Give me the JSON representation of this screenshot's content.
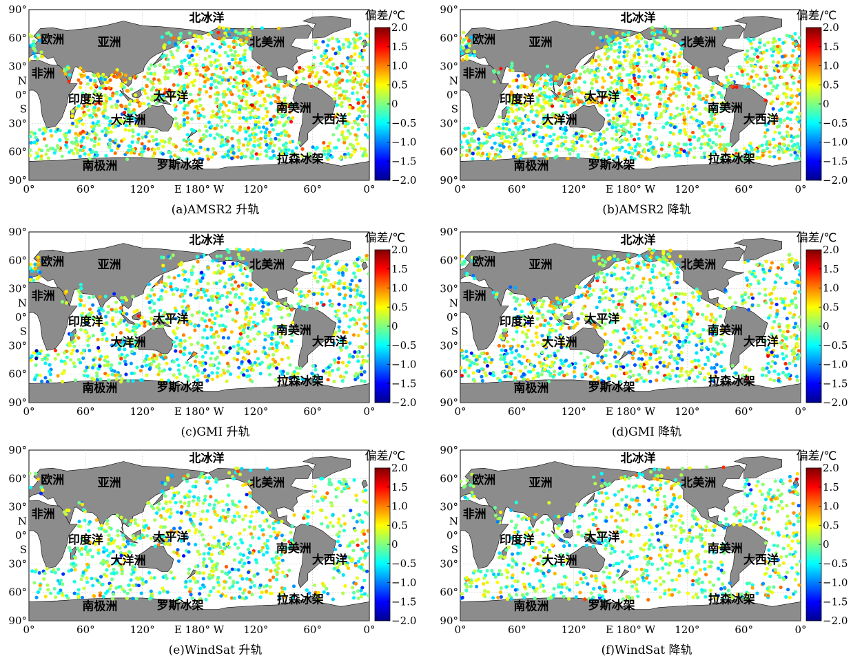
{
  "panels": [
    {
      "caption": "(a)AMSR2 升轨",
      "coverage": "global_dense",
      "seed": 11
    },
    {
      "caption": "(b)AMSR2 降轨",
      "coverage": "global_dense",
      "seed": 23
    },
    {
      "caption": "(c)GMI 升轨",
      "coverage": "global",
      "seed": 37
    },
    {
      "caption": "(d)GMI 降轨",
      "coverage": "global",
      "seed": 41
    },
    {
      "caption": "(e)WindSat 升轨",
      "coverage": "global_sparse",
      "seed": 53
    },
    {
      "caption": "(f)WindSat 降轨",
      "coverage": "global_sparse",
      "seed": 67
    }
  ],
  "axes": {
    "y_ticks": [
      "90°",
      "60°",
      "30°",
      "N",
      "0°",
      "S",
      "30°",
      "60°",
      "90°"
    ],
    "x_ticks": [
      "0°",
      "60°",
      "120°",
      "E 180° W",
      "120°",
      "60°",
      "0°"
    ]
  },
  "regions": {
    "arctic": "北冰洋",
    "europe": "欧洲",
    "asia": "亚洲",
    "north_america": "北美洲",
    "africa": "非洲",
    "indian_ocean": "印度洋",
    "pacific": "太平洋",
    "south_america": "南美洲",
    "oceania": "大洋洲",
    "atlantic": "大西洋",
    "antarctica": "南极洲",
    "ross": "罗斯冰架",
    "larsen": "拉森冰架"
  },
  "colorbar": {
    "title": "偏差/℃",
    "ticks": [
      "2.0",
      "1.5",
      "1.0",
      "0.5",
      "0",
      "−0.5",
      "−1.0",
      "−1.5",
      "−2.0"
    ],
    "range": [
      -2.0,
      2.0
    ],
    "colormap": [
      "#00008f",
      "#0000ff",
      "#0080ff",
      "#00ffff",
      "#80ff80",
      "#ffff00",
      "#ff8000",
      "#ff0000",
      "#800000"
    ]
  },
  "colors": {
    "land": "#8c8c8c"
  }
}
